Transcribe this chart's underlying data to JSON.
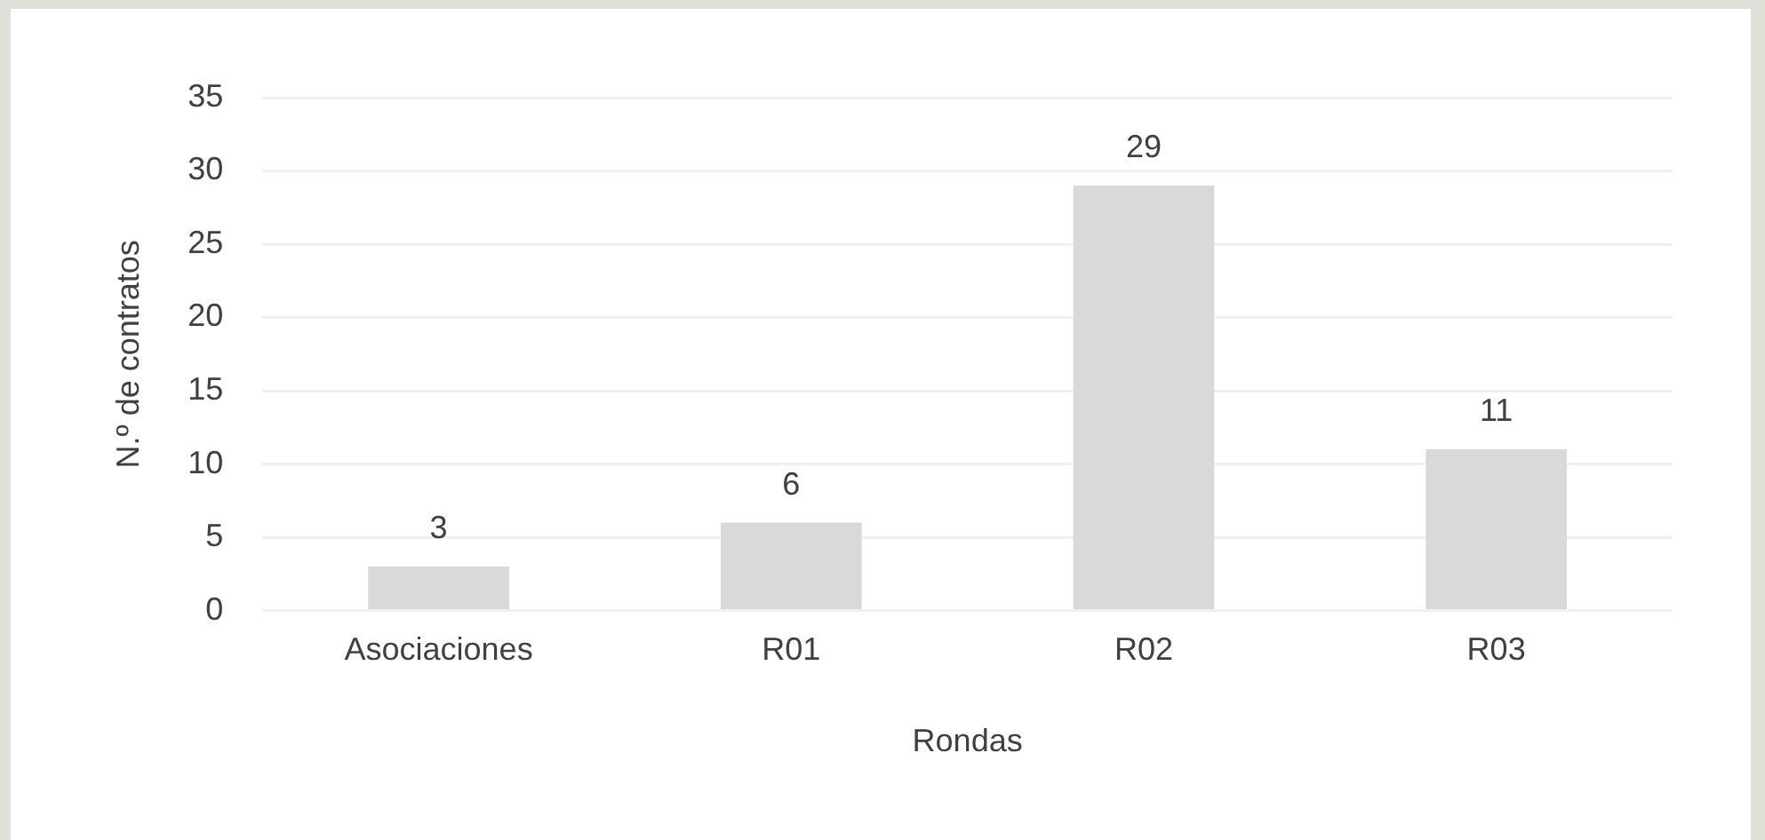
{
  "chart_data": {
    "type": "bar",
    "xlabel": "Rondas",
    "ylabel": "N.º de contratos",
    "categories": [
      "Asociaciones",
      "R01",
      "R02",
      "R03"
    ],
    "values": [
      3,
      6,
      29,
      11
    ],
    "color": "#d9d9d9",
    "ylim": [
      0,
      35
    ],
    "yticks": [
      0,
      5,
      10,
      15,
      20,
      25,
      30,
      35
    ],
    "grid": "y",
    "data_labels": true
  }
}
